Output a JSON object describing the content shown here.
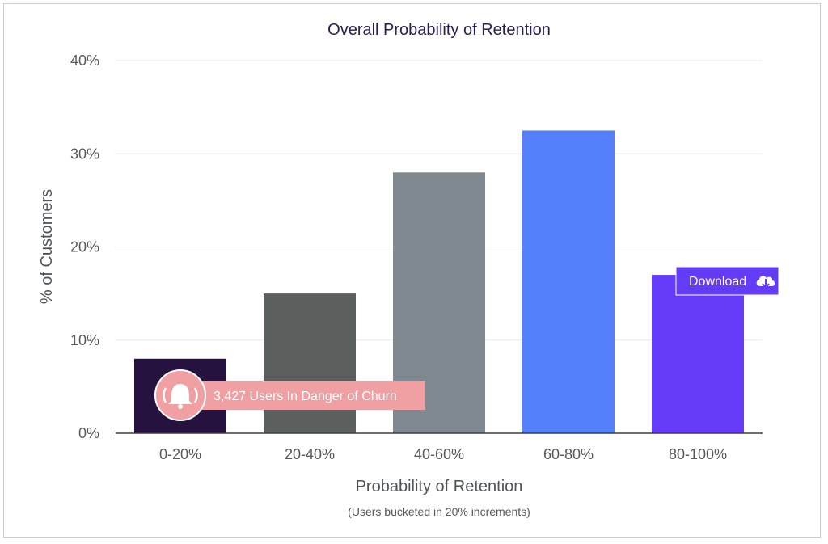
{
  "chart_data": {
    "type": "bar",
    "title": "Overall Probability of Retention",
    "xlabel": "Probability of Retention",
    "subtitle": "(Users bucketed in 20% increments)",
    "ylabel": "% of Customers",
    "categories": [
      "0-20%",
      "20-40%",
      "40-60%",
      "60-80%",
      "80-100%"
    ],
    "values": [
      8,
      15,
      28,
      32.5,
      17
    ],
    "ylim": [
      0,
      40
    ],
    "yticks": [
      "0%",
      "10%",
      "20%",
      "30%",
      "40%"
    ],
    "ytick_values": [
      0,
      10,
      20,
      30,
      40
    ],
    "grid": true,
    "bar_colors": [
      "#26123f",
      "#5b5f5d",
      "#808890",
      "#5580fb",
      "#643cf7"
    ]
  },
  "callout": {
    "text": "3,427 Users In Danger of Churn",
    "icon": "bell-icon",
    "color": "#f0a0a2"
  },
  "download": {
    "label": "Download",
    "icon": "cloud-download-icon",
    "color": "#643cf7"
  }
}
